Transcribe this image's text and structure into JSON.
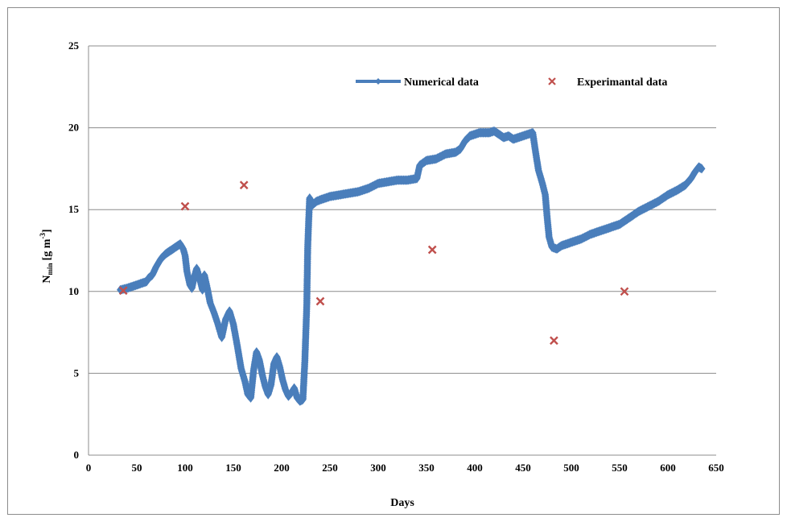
{
  "chart_data": {
    "type": "scatter",
    "title": "",
    "xlabel": "Days",
    "ylabel": "N",
    "ylabel_sub": "min",
    "ylabel_unit_prefix": "[g m",
    "ylabel_unit_exp": "-3",
    "ylabel_unit_suffix": "]",
    "xlim": [
      0,
      650
    ],
    "ylim": [
      0,
      25
    ],
    "xticks": [
      0,
      50,
      100,
      150,
      200,
      250,
      300,
      350,
      400,
      450,
      500,
      550,
      600,
      650
    ],
    "yticks": [
      0,
      5,
      10,
      15,
      20,
      25
    ],
    "grid": "horizontal",
    "legend_position": "top-right",
    "series": [
      {
        "name": "Numerical data",
        "style": "line-with-diamond-markers",
        "color": "#4a7ebb",
        "x": [
          33,
          40,
          45,
          50,
          55,
          60,
          62,
          66,
          70,
          75,
          80,
          85,
          90,
          95,
          98,
          100,
          102,
          105,
          107,
          110,
          112,
          115,
          118,
          120,
          123,
          126,
          130,
          134,
          138,
          142,
          146,
          150,
          154,
          158,
          162,
          165,
          168,
          171,
          174,
          177,
          180,
          183,
          186,
          189,
          192,
          195,
          198,
          201,
          204,
          207,
          210,
          213,
          216,
          219,
          222,
          224,
          226,
          227,
          228,
          229,
          230,
          232,
          236,
          240,
          245,
          250,
          260,
          270,
          280,
          290,
          300,
          310,
          320,
          330,
          340,
          343,
          350,
          360,
          370,
          380,
          385,
          390,
          395,
          400,
          405,
          410,
          415,
          420,
          425,
          430,
          435,
          440,
          445,
          450,
          455,
          460,
          463,
          466,
          470,
          473,
          475,
          477,
          480,
          485,
          490,
          500,
          510,
          520,
          530,
          540,
          550,
          560,
          570,
          580,
          590,
          600,
          610,
          618,
          624,
          628,
          632,
          635
        ],
        "y": [
          10.1,
          10.2,
          10.3,
          10.4,
          10.5,
          10.6,
          10.8,
          11.0,
          11.5,
          12.0,
          12.3,
          12.5,
          12.7,
          12.9,
          12.6,
          12.2,
          11.2,
          10.4,
          10.2,
          11.0,
          11.4,
          10.8,
          10.1,
          11.0,
          10.2,
          9.3,
          8.7,
          8.0,
          7.2,
          8.3,
          8.8,
          8.0,
          6.7,
          5.3,
          4.5,
          3.7,
          3.5,
          5.2,
          6.3,
          5.8,
          4.9,
          4.2,
          3.7,
          4.3,
          5.6,
          6.0,
          5.4,
          4.6,
          4.0,
          3.6,
          3.8,
          4.1,
          3.5,
          3.3,
          3.4,
          5.7,
          9.1,
          12.7,
          14.3,
          15.7,
          15.6,
          15.3,
          15.5,
          15.6,
          15.7,
          15.8,
          15.9,
          16.0,
          16.1,
          16.3,
          16.6,
          16.7,
          16.8,
          16.8,
          16.9,
          17.7,
          18.0,
          18.1,
          18.4,
          18.5,
          18.7,
          19.2,
          19.5,
          19.6,
          19.7,
          19.7,
          19.7,
          19.8,
          19.6,
          19.4,
          19.5,
          19.3,
          19.4,
          19.5,
          19.6,
          19.7,
          18.5,
          17.4,
          16.6,
          15.9,
          14.5,
          13.3,
          12.7,
          12.6,
          12.8,
          13.0,
          13.2,
          13.5,
          13.7,
          13.9,
          14.1,
          14.5,
          14.9,
          15.2,
          15.5,
          15.9,
          16.2,
          16.5,
          16.9,
          17.3,
          17.6,
          17.5
        ]
      },
      {
        "name": "Experimantal data",
        "style": "x-markers",
        "color": "#c0504d",
        "x": [
          36,
          100,
          161,
          240,
          356,
          482,
          555
        ],
        "y": [
          10.05,
          15.2,
          16.5,
          9.4,
          12.55,
          7.0,
          10.0
        ]
      }
    ]
  }
}
